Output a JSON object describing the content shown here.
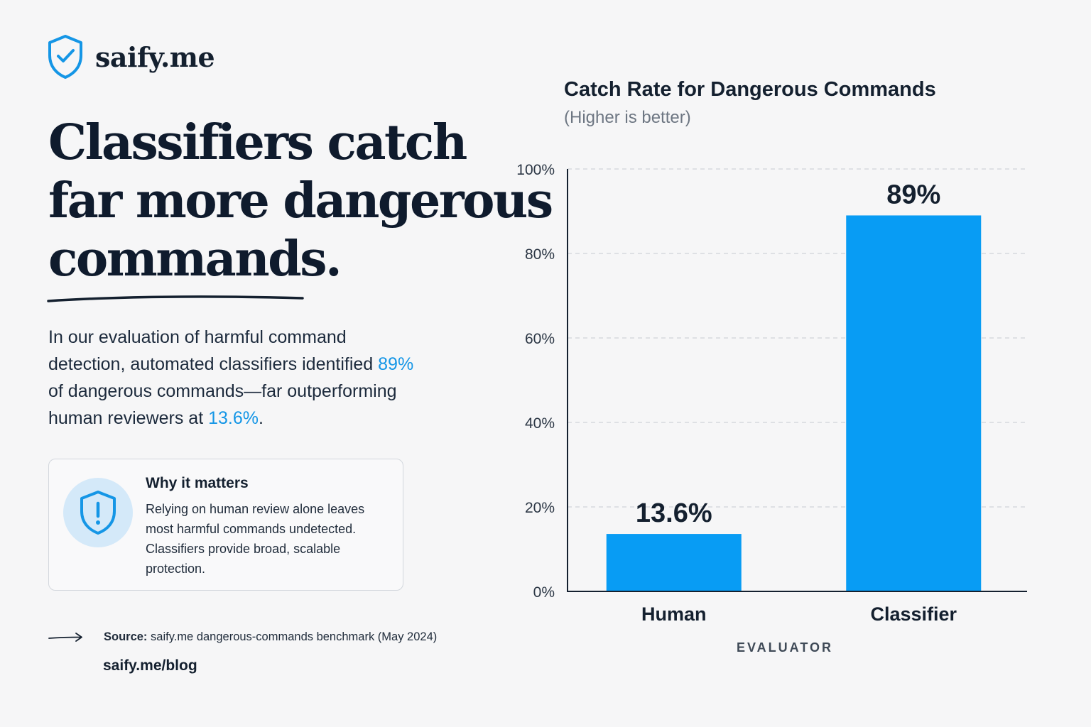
{
  "brand": {
    "name": "saify.me",
    "logo_icon": "shield-check-icon",
    "accent_color": "#1596e6"
  },
  "headline": {
    "line1": "Classifiers catch",
    "line2": "far more dangerous",
    "line3": "commands."
  },
  "intro": {
    "part1": "In our evaluation of harmful command detection, automated classifiers identified ",
    "highlight1": "89%",
    "part2": " of dangerous commands—far outperforming human reviewers at ",
    "highlight2": "13.6%",
    "part3": "."
  },
  "card": {
    "icon": "shield-exclamation-icon",
    "title": "Why it matters",
    "body": "Relying on human review alone leaves most harmful commands undetected. Classifiers provide broad, scalable protection."
  },
  "source": {
    "label": "Source:",
    "text": "saify.me dangerous-commands benchmark (May 2024)",
    "arrow_icon": "arrow-right-icon"
  },
  "blog_link": "saify.me/blog",
  "chart_data": {
    "type": "bar",
    "title": "Catch Rate for Dangerous Commands",
    "subtitle": "(Higher is better)",
    "xlabel": "EVALUATOR",
    "ylabel": "",
    "categories": [
      "Human",
      "Classifier"
    ],
    "values": [
      13.6,
      89
    ],
    "value_labels": [
      "13.6%",
      "89%"
    ],
    "ylim": [
      0,
      100
    ],
    "yticks": [
      0,
      20,
      40,
      60,
      80,
      100
    ],
    "ytick_labels": [
      "0%",
      "20%",
      "40%",
      "60%",
      "80%",
      "100%"
    ],
    "grid": true,
    "bar_color": "#089cf4"
  }
}
